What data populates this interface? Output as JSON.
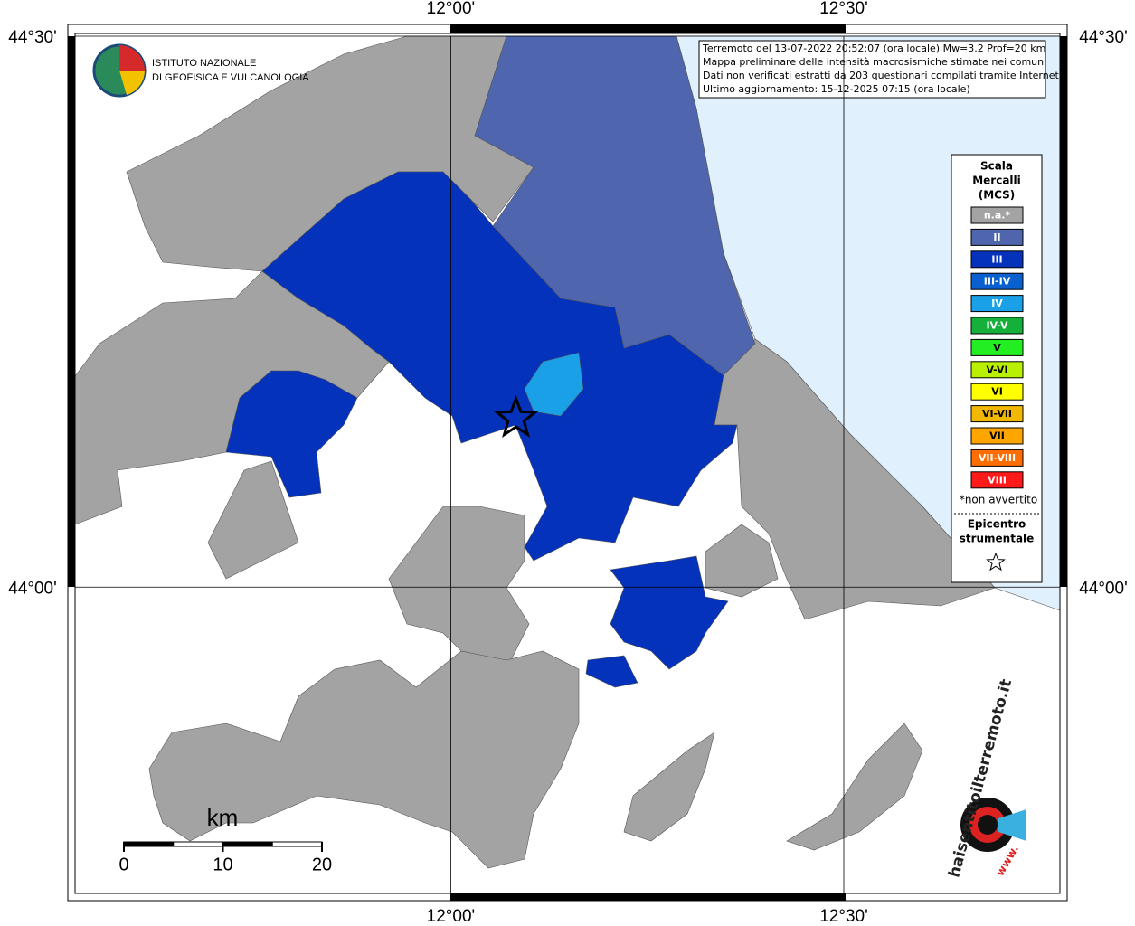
{
  "map": {
    "lonlim": [
      11.522,
      12.775
    ],
    "latlim": [
      43.722,
      44.5
    ],
    "lon_ticks": [
      {
        "value": 12.0,
        "label": "12°00'"
      },
      {
        "value": 12.5,
        "label": "12°30'"
      }
    ],
    "lat_ticks": [
      {
        "value": 44.5,
        "label": "44°30'"
      },
      {
        "value": 44.0,
        "label": "44°00'"
      }
    ],
    "epicenter": {
      "lon": 12.083,
      "lat": 44.153
    },
    "info": [
      "Terremoto del 13-07-2022 20:52:07 (ora locale) Mw=3.2 Prof=20 km",
      "Mappa preliminare delle intensità macrosismiche stimate nei comuni",
      "Dati non verificati estratti da 203 questionari compilati tramite Internet.",
      "Ultimo aggiornamento: 15-12-2025 07:15 (ora locale)"
    ],
    "institute": [
      "ISTITUTO NAZIONALE",
      "DI GEOFISICA E VULCANOLOGIA"
    ],
    "legend": {
      "title": [
        "Scala",
        "Mercalli",
        "(MCS)"
      ],
      "items": [
        {
          "label": "n.a.*",
          "color": "#a3a3a3"
        },
        {
          "label": "II",
          "color": "#4f65ad"
        },
        {
          "label": "III",
          "color": "#0432ba"
        },
        {
          "label": "III-IV",
          "color": "#0b60d0"
        },
        {
          "label": "IV",
          "color": "#1aa0e6"
        },
        {
          "label": "IV-V",
          "color": "#14b03a"
        },
        {
          "label": "V",
          "color": "#22ee22"
        },
        {
          "label": "V-VI",
          "color": "#b8f000"
        },
        {
          "label": "VI",
          "color": "#ffff00"
        },
        {
          "label": "VI-VII",
          "color": "#f2b800"
        },
        {
          "label": "VII",
          "color": "#ffa500"
        },
        {
          "label": "VII-VIII",
          "color": "#ff6c00"
        },
        {
          "label": "VIII",
          "color": "#ff1a1a"
        }
      ],
      "note": "*non avvertito",
      "epicenter_label": [
        "Epicentro",
        "strumentale"
      ]
    },
    "sea_color": "#e0f0fc",
    "scale": {
      "unit": "km",
      "ticks": [
        0,
        10,
        20
      ]
    },
    "site": {
      "name": "haisentitoilterremoto.it",
      "prefix": "www."
    }
  }
}
